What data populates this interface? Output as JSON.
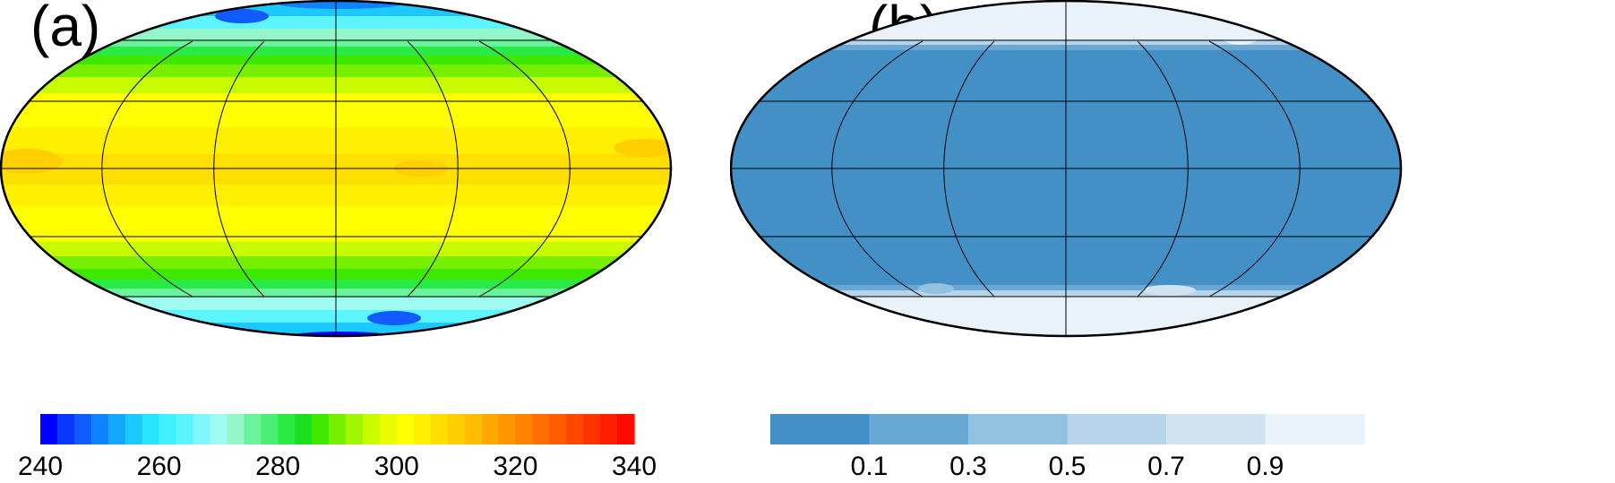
{
  "panels": [
    {
      "id": "a",
      "label": "(a)",
      "colorbar": {
        "type": "continuous-discrete",
        "min": 240,
        "max": 340,
        "tick_labels": [
          "240",
          "260",
          "280",
          "300",
          "320",
          "340"
        ],
        "tick_values": [
          240,
          260,
          280,
          300,
          320,
          340
        ],
        "colors": [
          "#0000ff",
          "#0a37ff",
          "#0f5bff",
          "#0f83ff",
          "#13a7ff",
          "#1bc8ff",
          "#25e4ff",
          "#3ef1ff",
          "#5cf5ff",
          "#7ff7ff",
          "#9ffbf1",
          "#95f7c9",
          "#6bf29d",
          "#4bef72",
          "#2aeb45",
          "#1be021",
          "#3fe800",
          "#76f000",
          "#a3f500",
          "#c8fa00",
          "#e9fd00",
          "#ffff00",
          "#ffef00",
          "#ffdf00",
          "#ffcf00",
          "#ffbd00",
          "#ffa900",
          "#ff9600",
          "#ff8200",
          "#ff6f00",
          "#ff5b00",
          "#ff4700",
          "#ff3300",
          "#ff1f00",
          "#ff0a00"
        ]
      }
    },
    {
      "id": "b",
      "label": "(b)",
      "colorbar": {
        "type": "discrete",
        "tick_labels": [
          "0.1",
          "0.3",
          "0.5",
          "0.7",
          "0.9"
        ],
        "colors": [
          "#4390c7",
          "#69a7d4",
          "#93c1e0",
          "#b6d4ea",
          "#d1e2f1",
          "#e9f1f9"
        ]
      }
    }
  ]
}
